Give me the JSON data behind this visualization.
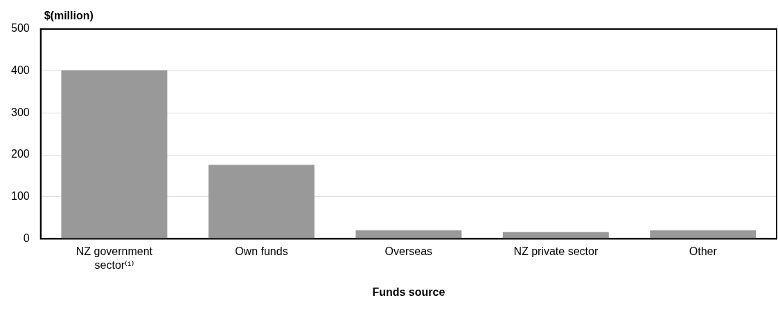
{
  "chart_data": {
    "type": "bar",
    "ylabel": "$(million)",
    "xlabel": "Funds source",
    "categories": [
      "NZ government sector⁽¹⁾",
      "Own funds",
      "Overseas",
      "NZ private sector",
      "Other"
    ],
    "values": [
      402,
      176,
      20,
      16,
      20
    ],
    "color": "#999999",
    "ylim": [
      0,
      500
    ],
    "yticks": [
      0,
      100,
      200,
      300,
      400,
      500
    ],
    "grid": "y"
  }
}
